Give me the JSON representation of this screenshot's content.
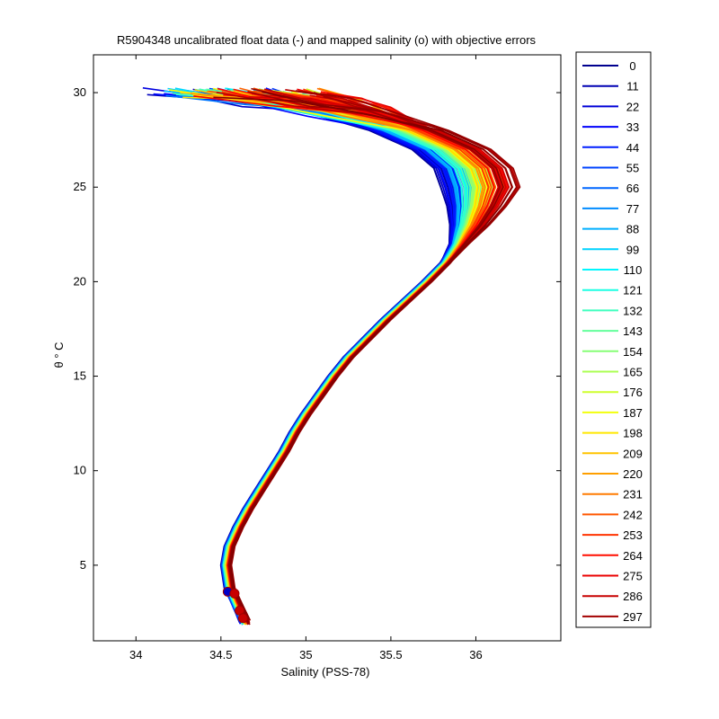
{
  "chart_data": {
    "type": "line",
    "title": "R5904348 uncalibrated float data (-) and mapped salinity (o) with objective errors",
    "xlabel": "Salinity (PSS-78)",
    "ylabel": "θ ° C",
    "xlim": [
      33.75,
      36.5
    ],
    "ylim": [
      1,
      32
    ],
    "xticks": [
      "34",
      "34.5",
      "35",
      "35.5",
      "36"
    ],
    "yticks": [
      "5",
      "10",
      "15",
      "20",
      "25",
      "30"
    ],
    "grid": false,
    "legend_placement": "outside-right",
    "colormap": "jet",
    "profile_count": 298,
    "legend": [
      "0",
      "11",
      "22",
      "33",
      "44",
      "55",
      "66",
      "77",
      "88",
      "99",
      "110",
      "121",
      "132",
      "143",
      "154",
      "165",
      "176",
      "187",
      "198",
      "209",
      "220",
      "231",
      "242",
      "253",
      "264",
      "275",
      "286",
      "297"
    ],
    "legend_colors": [
      "#00008f",
      "#0000b3",
      "#0000d7",
      "#0000fb",
      "#001fff",
      "#0043ff",
      "#0067ff",
      "#008bff",
      "#00afff",
      "#00d3ff",
      "#00f7ff",
      "#1bffe3",
      "#3fffbf",
      "#63ff9b",
      "#87ff77",
      "#abff53",
      "#cfff2f",
      "#f3ff0b",
      "#ffe700",
      "#ffc300",
      "#ff9f00",
      "#ff7b00",
      "#ff5700",
      "#ff3300",
      "#ff0f00",
      "#eb0000",
      "#c70000",
      "#a30000"
    ],
    "base_profile": {
      "theta": [
        2.0,
        2.8,
        3.8,
        5.0,
        6.0,
        7.0,
        8.0,
        9.0,
        10.0,
        11.0,
        12.0,
        13.0,
        14.0,
        15.0,
        16.0,
        17.0,
        18.0,
        19.0,
        20.0,
        21.0,
        22.0,
        23.0,
        24.0,
        25.0,
        26.0,
        27.0,
        28.0,
        29.0,
        29.5,
        30.0
      ],
      "salinity": [
        34.64,
        34.6,
        34.55,
        34.53,
        34.55,
        34.6,
        34.66,
        34.73,
        34.8,
        34.87,
        34.93,
        35.0,
        35.08,
        35.16,
        35.25,
        35.36,
        35.47,
        35.59,
        35.71,
        35.82,
        35.9,
        35.96,
        36.0,
        36.02,
        35.98,
        35.85,
        35.6,
        35.25,
        34.95,
        34.6
      ]
    },
    "mapped_markers": [
      {
        "salinity": 34.54,
        "theta": 3.6
      },
      {
        "salinity": 34.58,
        "theta": 3.5
      },
      {
        "salinity": 34.61,
        "theta": 2.6
      },
      {
        "salinity": 34.63,
        "theta": 2.2
      }
    ]
  }
}
